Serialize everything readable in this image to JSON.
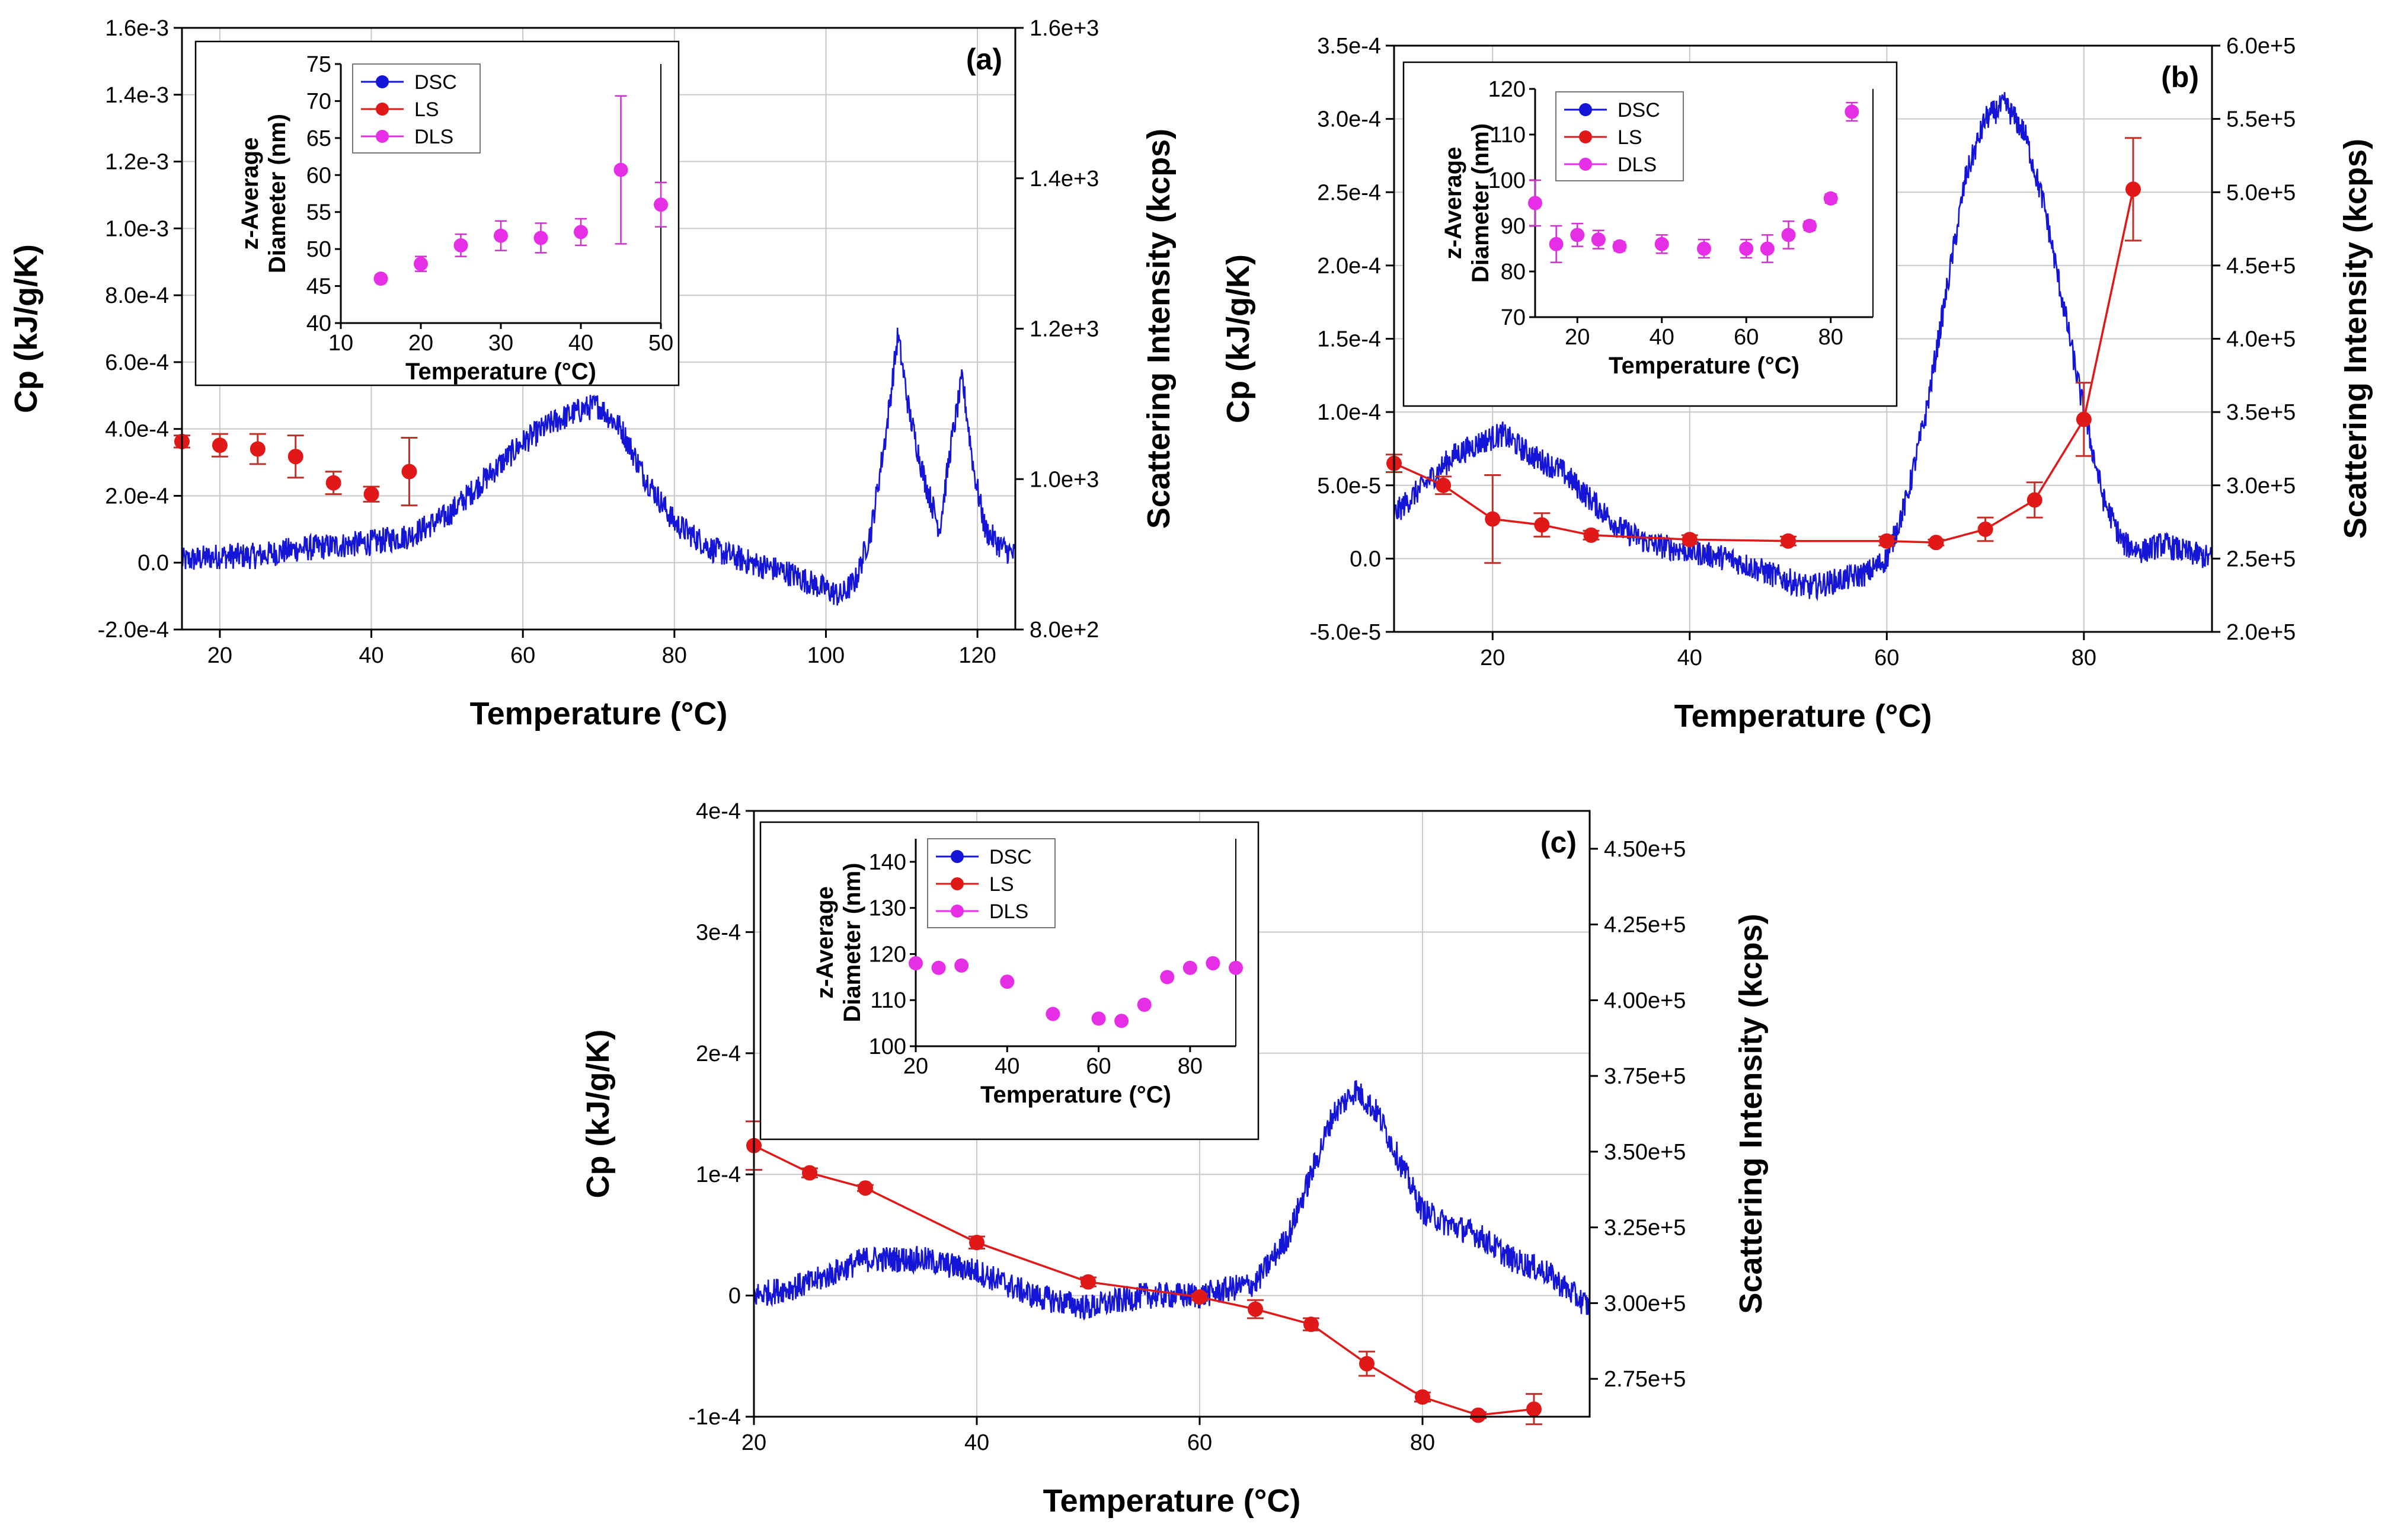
{
  "colors": {
    "dsc": "#1515d8",
    "ls": "#e01818",
    "dls": "#e62ee6",
    "err_ls": "#c0302a",
    "err_dls": "#cc33cc"
  },
  "legend_labels": [
    "DSC",
    "LS",
    "DLS"
  ],
  "chart_data": [
    {
      "type": "line",
      "panel": "(a)",
      "xlabel": "Temperature (°C)",
      "ylabel": "Cp (kJ/g/K)",
      "y2label": "Scattering Intensity (kcps)",
      "xlim": [
        15,
        125
      ],
      "ylim": [
        -0.0002,
        0.0016
      ],
      "y2lim": [
        800,
        1600
      ],
      "xticks": [
        20,
        40,
        60,
        80,
        100,
        120
      ],
      "xtick_labels": [
        "20",
        "40",
        "60",
        "80",
        "100",
        "120"
      ],
      "yticks": [
        -0.0002,
        0,
        0.0002,
        0.0004,
        0.0006,
        0.0008,
        0.001,
        0.0012,
        0.0014,
        0.0016
      ],
      "ytick_labels": [
        "-2.0e-4",
        "0.0",
        "2.0e-4",
        "4.0e-4",
        "6.0e-4",
        "8.0e-4",
        "1.0e-3",
        "1.2e-3",
        "1.4e-3",
        "1.6e-3"
      ],
      "y2ticks": [
        800,
        1000,
        1200,
        1400,
        1600
      ],
      "y2tick_labels": [
        "8.0e+2",
        "1.0e+3",
        "1.2e+3",
        "1.4e+3",
        "1.6e+3"
      ],
      "series": [
        {
          "name": "DSC",
          "axis": "left",
          "style": "noisy",
          "x": [
            15,
            20,
            25,
            30,
            35,
            40,
            45,
            50,
            55,
            60,
            64,
            68,
            70,
            73,
            76,
            80,
            85,
            90,
            95,
            100,
            102,
            104,
            106,
            108,
            109.5,
            111,
            113,
            115,
            116.5,
            118,
            119.5,
            121,
            123,
            125
          ],
          "values": [
            5e-06,
            2e-05,
            2e-05,
            4e-05,
            5e-05,
            6e-05,
            8e-05,
            0.00014,
            0.00025,
            0.00036,
            0.00042,
            0.00046,
            0.00047,
            0.0004,
            0.00026,
            0.00012,
            4e-05,
            0.0,
            -3e-05,
            -8e-05,
            -0.0001,
            -5e-05,
            0.0001,
            0.0004,
            0.00068,
            0.00045,
            0.00025,
            0.0001,
            0.00035,
            0.00055,
            0.00028,
            0.0001,
            5e-05,
            2e-05
          ]
        },
        {
          "name": "LS",
          "axis": "right",
          "line": false,
          "x": [
            15,
            20,
            25,
            30,
            35,
            40,
            45
          ],
          "values": [
            1050,
            1045,
            1040,
            1030,
            995,
            980,
            1010
          ],
          "err": [
            8,
            15,
            20,
            28,
            15,
            10,
            45
          ]
        }
      ],
      "inset": {
        "xlabel": "Temperature (°C)",
        "ylabel_lines": [
          "z-Average",
          "Diameter (nm)"
        ],
        "xlim": [
          10,
          50
        ],
        "ylim": [
          40,
          75
        ],
        "xticks": [
          10,
          20,
          30,
          40,
          50
        ],
        "xtick_labels": [
          "10",
          "20",
          "30",
          "40",
          "50"
        ],
        "yticks": [
          40,
          45,
          50,
          55,
          60,
          65,
          70,
          75
        ],
        "ytick_labels": [
          "40",
          "45",
          "50",
          "55",
          "60",
          "65",
          "70",
          "75"
        ],
        "dls": {
          "x": [
            15,
            20,
            25,
            30,
            35,
            40,
            45,
            50
          ],
          "values": [
            46,
            48,
            50.5,
            51.8,
            51.5,
            52.3,
            60.7,
            56
          ],
          "err": [
            0.5,
            1,
            1.5,
            2,
            2,
            1.8,
            10,
            3
          ]
        }
      }
    },
    {
      "type": "line",
      "panel": "(b)",
      "xlabel": "Temperature (°C)",
      "ylabel": "Cp (kJ/g/K)",
      "y2label": "Scattering Intensity (kcps)",
      "xlim": [
        10,
        93
      ],
      "ylim": [
        -5e-05,
        0.00035
      ],
      "y2lim": [
        200000,
        600000
      ],
      "xticks": [
        20,
        40,
        60,
        80
      ],
      "xtick_labels": [
        "20",
        "40",
        "60",
        "80"
      ],
      "yticks": [
        -5e-05,
        0,
        5e-05,
        0.0001,
        0.00015,
        0.0002,
        0.00025,
        0.0003,
        0.00035
      ],
      "ytick_labels": [
        "-5.0e-5",
        "0.0",
        "5.0e-5",
        "1.0e-4",
        "1.5e-4",
        "2.0e-4",
        "2.5e-4",
        "3.0e-4",
        "3.5e-4"
      ],
      "y2ticks": [
        200000,
        250000,
        300000,
        350000,
        400000,
        450000,
        500000,
        550000,
        600000
      ],
      "y2tick_labels": [
        "2.0e+5",
        "2.5e+5",
        "3.0e+5",
        "3.5e+5",
        "4.0e+5",
        "4.5e+5",
        "5.0e+5",
        "5.5e+5",
        "6.0e+5"
      ],
      "series": [
        {
          "name": "DSC",
          "axis": "left",
          "style": "noisy",
          "x": [
            10,
            13,
            16,
            19,
            21,
            24,
            27,
            30,
            33,
            36,
            40,
            44,
            48,
            52,
            55,
            58,
            60,
            62,
            64,
            66,
            68,
            70,
            72,
            74,
            76,
            78,
            80,
            82,
            84,
            86,
            88,
            90,
            93
          ],
          "values": [
            3e-05,
            5e-05,
            7e-05,
            8e-05,
            8.5e-05,
            7e-05,
            6e-05,
            4e-05,
            2e-05,
            1e-05,
            5e-06,
            0.0,
            -1e-05,
            -2e-05,
            -1.5e-05,
            -1e-05,
            0.0,
            4e-05,
            0.0001,
            0.00018,
            0.00026,
            0.0003,
            0.00031,
            0.00029,
            0.00024,
            0.00017,
            0.0001,
            4e-05,
            1e-05,
            5e-06,
            1e-05,
            5e-06,
            0.0
          ]
        },
        {
          "name": "LS",
          "axis": "right",
          "line": true,
          "x": [
            10,
            15,
            20,
            25,
            30,
            40,
            50,
            60,
            65,
            70,
            75,
            80,
            85
          ],
          "values": [
            315000,
            300000,
            277000,
            273000,
            266000,
            263000,
            262000,
            262000,
            261000,
            270000,
            290000,
            345000,
            502000
          ],
          "err": [
            6000,
            6000,
            30000,
            8000,
            3000,
            3000,
            3000,
            3000,
            2000,
            8000,
            12000,
            25000,
            35000
          ]
        }
      ],
      "inset": {
        "xlabel": "Temperature (°C)",
        "ylabel_lines": [
          "z-Average",
          "Diameter (nm)"
        ],
        "xlim": [
          10,
          90
        ],
        "ylim": [
          70,
          120
        ],
        "xticks": [
          20,
          40,
          60,
          80
        ],
        "xtick_labels": [
          "20",
          "40",
          "60",
          "80"
        ],
        "yticks": [
          70,
          80,
          90,
          100,
          110,
          120
        ],
        "ytick_labels": [
          "70",
          "80",
          "90",
          "100",
          "110",
          "120"
        ],
        "dls": {
          "x": [
            10,
            15,
            20,
            25,
            30,
            40,
            50,
            60,
            65,
            70,
            75,
            80,
            85
          ],
          "values": [
            95,
            86,
            88,
            87,
            85.5,
            86,
            85,
            85,
            85,
            88,
            90,
            96,
            115
          ],
          "err": [
            5,
            4,
            2.5,
            2,
            1,
            2,
            2,
            2,
            3,
            3,
            1,
            1,
            2
          ]
        }
      }
    },
    {
      "type": "line",
      "panel": "(c)",
      "xlabel": "Temperature (°C)",
      "ylabel": "Cp (kJ/g/K)",
      "y2label": "Scattering Intensity (kcps)",
      "xlim": [
        20,
        95
      ],
      "ylim": [
        -0.0001,
        0.0004
      ],
      "y2lim": [
        262500,
        462500
      ],
      "xticks": [
        20,
        40,
        60,
        80
      ],
      "xtick_labels": [
        "20",
        "40",
        "60",
        "80"
      ],
      "yticks": [
        -0.0001,
        0,
        0.0001,
        0.0002,
        0.0003,
        0.0004
      ],
      "ytick_labels": [
        "-1e-4",
        "0",
        "1e-4",
        "2e-4",
        "3e-4",
        "4e-4"
      ],
      "y2ticks": [
        275000,
        300000,
        325000,
        350000,
        375000,
        400000,
        425000,
        450000
      ],
      "y2tick_labels": [
        "2.75e+5",
        "3.00e+5",
        "3.25e+5",
        "3.50e+5",
        "3.75e+5",
        "4.00e+5",
        "4.25e+5",
        "4.50e+5"
      ],
      "series": [
        {
          "name": "DSC",
          "axis": "left",
          "style": "noisy",
          "x": [
            20,
            25,
            30,
            35,
            40,
            45,
            50,
            55,
            60,
            65,
            68,
            70,
            72,
            74,
            76,
            78,
            80,
            82,
            85,
            88,
            91,
            95
          ],
          "values": [
            0.0,
            1e-05,
            3e-05,
            3e-05,
            2e-05,
            0.0,
            -1e-05,
            0.0,
            0.0,
            1e-05,
            5e-05,
            0.0001,
            0.00015,
            0.00017,
            0.00015,
            0.00011,
            7e-05,
            6e-05,
            5e-05,
            3e-05,
            2e-05,
            -1e-05
          ]
        },
        {
          "name": "LS",
          "axis": "right",
          "line": true,
          "x": [
            20,
            25,
            30,
            40,
            50,
            60,
            65,
            70,
            75,
            80,
            85,
            90
          ],
          "values": [
            352000,
            343000,
            338000,
            320000,
            307000,
            302000,
            298000,
            293000,
            280000,
            269000,
            263000,
            265000
          ],
          "err": [
            8000,
            1500,
            1000,
            2000,
            1500,
            1000,
            3000,
            2000,
            4000,
            1500,
            1000,
            5000
          ]
        }
      ],
      "inset": {
        "xlabel": "Temperature (°C)",
        "ylabel_lines": [
          "z-Average",
          "Diameter (nm)"
        ],
        "xlim": [
          20,
          90
        ],
        "ylim": [
          100,
          145
        ],
        "xticks": [
          20,
          40,
          60,
          80
        ],
        "xtick_labels": [
          "20",
          "40",
          "60",
          "80"
        ],
        "yticks": [
          100,
          110,
          120,
          130,
          140
        ],
        "ytick_labels": [
          "100",
          "110",
          "120",
          "130",
          "140"
        ],
        "dls": {
          "x": [
            20,
            25,
            30,
            40,
            50,
            60,
            65,
            70,
            75,
            80,
            85,
            90
          ],
          "values": [
            118,
            117,
            117.5,
            114,
            107,
            106,
            105.5,
            109,
            115,
            117,
            118,
            117
          ],
          "err": [
            0,
            0,
            0,
            0,
            0,
            0,
            0,
            0,
            0,
            0,
            0,
            0
          ]
        }
      }
    }
  ]
}
